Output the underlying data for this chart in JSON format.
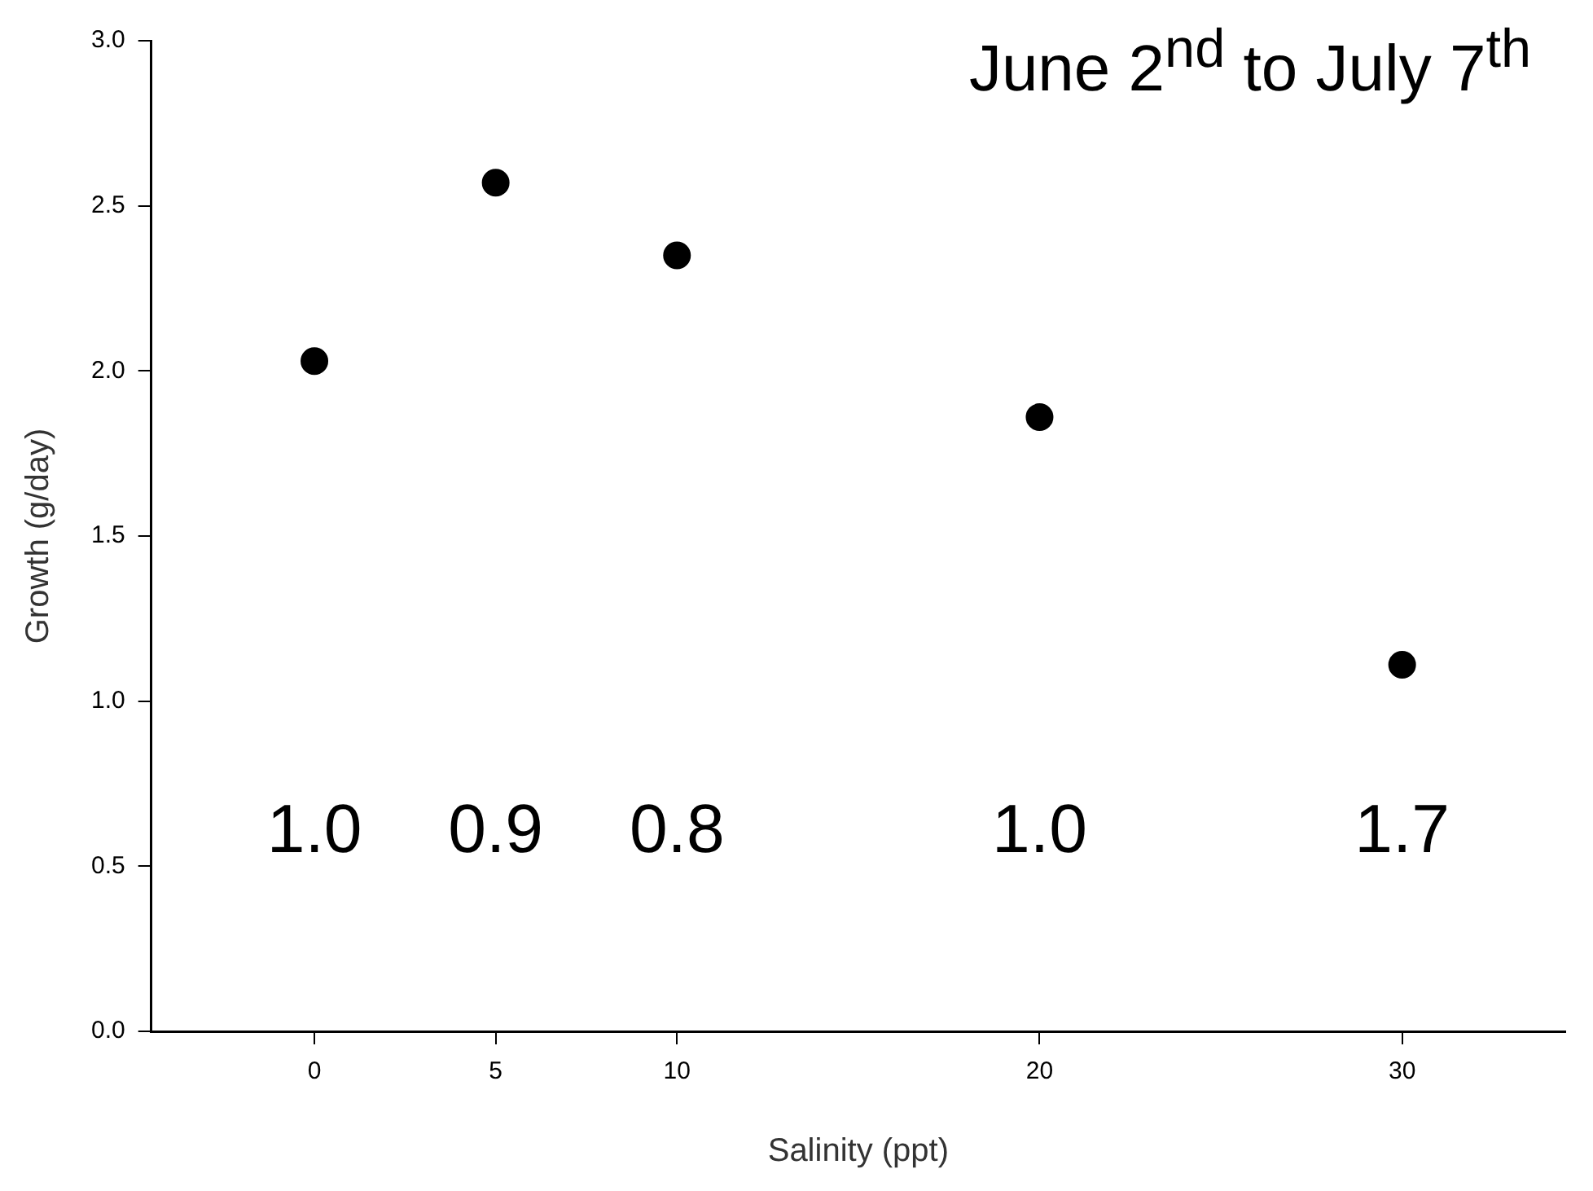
{
  "chart_data": {
    "type": "scatter",
    "title": "June 2$^{nd}$ to July 7$^{th}$",
    "xlabel": "Salinity (ppt)",
    "ylabel": "Growth (g/day)",
    "x": [
      0,
      5,
      10,
      20,
      30
    ],
    "series": [
      {
        "color": "#000000",
        "values": [
          2.03,
          2.57,
          2.35,
          1.86,
          1.11
        ]
      }
    ],
    "xlim": [
      -4.5,
      34.5
    ],
    "xticks": [
      0,
      5,
      10,
      20,
      30
    ],
    "ylim": [
      0,
      3.0
    ],
    "yticks": [
      {
        "value": 0,
        "label": "0.0"
      },
      {
        "value": 0.5,
        "label": "0.5"
      },
      {
        "value": 1,
        "label": "1.0"
      },
      {
        "value": 1.5,
        "label": "1.5"
      },
      {
        "value": 2,
        "label": "2.0"
      },
      {
        "value": 2.5,
        "label": "2.5"
      },
      {
        "value": 3,
        "label": "3.0"
      }
    ],
    "annotations": [
      "1.0",
      "0.9",
      "0.8",
      "1.0",
      "1.7"
    ],
    "grid": false,
    "legend": false,
    "marker": "circle"
  }
}
